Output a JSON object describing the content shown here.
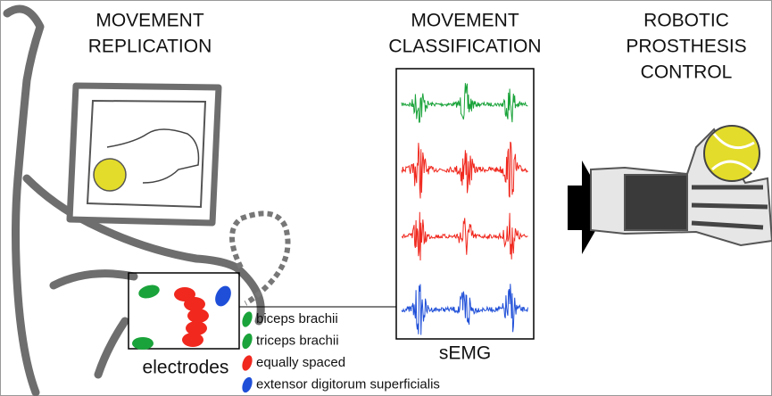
{
  "sections": [
    {
      "title_lines": [
        "MOVEMENT",
        "REPLICATION"
      ]
    },
    {
      "title_lines": [
        "MOVEMENT",
        "CLASSIFICATION"
      ]
    },
    {
      "title_lines": [
        "ROBOTIC",
        "PROSTHESIS",
        "CONTROL"
      ]
    }
  ],
  "electrodes_label": "electrodes",
  "semg_label": "sEMG",
  "legend": [
    {
      "label": "biceps brachii",
      "color": "#1aa33a"
    },
    {
      "label": "triceps brachii",
      "color": "#1aa33a"
    },
    {
      "label": "equally spaced",
      "color": "#f0281e"
    },
    {
      "label": "extensor digitorum superficialis",
      "color": "#1f4fd8"
    }
  ]
}
